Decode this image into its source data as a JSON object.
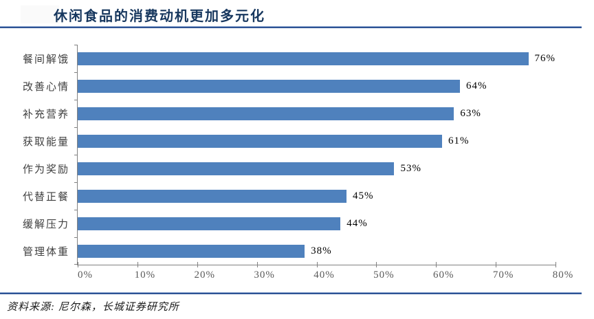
{
  "header": {
    "title": "休闲食品的消费动机更加多元化"
  },
  "footer": {
    "source": "资料来源: 尼尔森，长城证券研究所"
  },
  "colors": {
    "bar": "#4F81BD",
    "title": "#17375E",
    "rule_dark": "#2E5395",
    "rule_light": "#8FA8D0",
    "axis": "#808080",
    "tick_text": "#595959",
    "category_text": "#3F3F3F",
    "value_text": "#000000",
    "source_text": "#1A1A1A"
  },
  "chart_data": {
    "type": "bar",
    "orientation": "horizontal",
    "title": "休闲食品的消费动机更加多元化",
    "categories": [
      "餐间解饿",
      "改善心情",
      "补充营养",
      "获取能量",
      "作为奖励",
      "代替正餐",
      "缓解压力",
      "管理体重"
    ],
    "values": [
      76,
      64,
      63,
      61,
      53,
      45,
      44,
      38
    ],
    "value_labels": [
      "76%",
      "64%",
      "63%",
      "61%",
      "53%",
      "45%",
      "44%",
      "38%"
    ],
    "x_ticks": [
      "0%",
      "10%",
      "20%",
      "30%",
      "40%",
      "50%",
      "60%",
      "70%",
      "80%"
    ],
    "xlim": [
      0,
      80
    ],
    "xlabel": "",
    "ylabel": "",
    "grid": false,
    "legend": false,
    "bar_color": "#4F81BD",
    "source": "资料来源: 尼尔森，长城证券研究所"
  }
}
